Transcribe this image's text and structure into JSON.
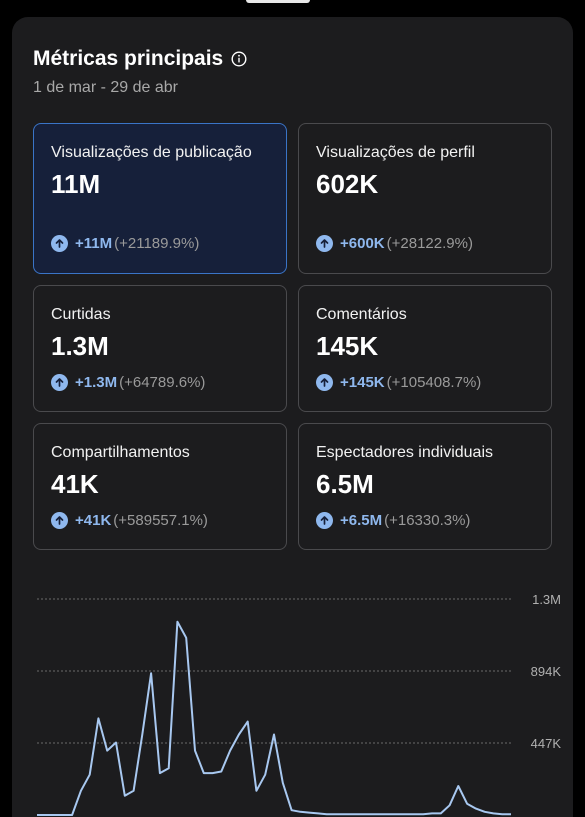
{
  "header": {
    "title": "Métricas principais",
    "date_range": "1 de mar - 29 de abr"
  },
  "metrics": [
    {
      "label": "Visualizações de publicação",
      "value": "11M",
      "delta": "+11M",
      "delta_pct": "(+21189.9%)",
      "selected": true
    },
    {
      "label": "Visualizações de perfil",
      "value": "602K",
      "delta": "+600K",
      "delta_pct": "(+28122.9%)",
      "selected": false
    },
    {
      "label": "Curtidas",
      "value": "1.3M",
      "delta": "+1.3M",
      "delta_pct": "(+64789.6%)",
      "selected": false
    },
    {
      "label": "Comentários",
      "value": "145K",
      "delta": "+145K",
      "delta_pct": "(+105408.7%)",
      "selected": false
    },
    {
      "label": "Compartilhamentos",
      "value": "41K",
      "delta": "+41K",
      "delta_pct": "(+589557.1%)",
      "selected": false
    },
    {
      "label": "Espectadores individuais",
      "value": "6.5M",
      "delta": "+6.5M",
      "delta_pct": "(+16330.3%)",
      "selected": false
    }
  ],
  "colors": {
    "accent": "#8fb8ee",
    "selected_border": "#3a74c7",
    "line": "#a8c8f0"
  },
  "chart_data": {
    "type": "line",
    "y_ticks": [
      "1.3M",
      "894K",
      "447K"
    ],
    "y_tick_values": [
      1341000,
      894000,
      447000
    ],
    "ylim": [
      0,
      1341000
    ],
    "grid": true,
    "series": [
      {
        "values": [
          0,
          0,
          0,
          0,
          0,
          150000,
          250000,
          600000,
          400000,
          450000,
          120000,
          150000,
          500000,
          880000,
          260000,
          290000,
          1200000,
          1100000,
          400000,
          260000,
          260000,
          270000,
          400000,
          500000,
          580000,
          150000,
          250000,
          500000,
          200000,
          30000,
          20000,
          15000,
          10000,
          5000,
          5000,
          5000,
          5000,
          5000,
          5000,
          5000,
          5000,
          5000,
          5000,
          5000,
          5000,
          10000,
          10000,
          60000,
          180000,
          70000,
          40000,
          20000,
          10000,
          5000,
          5000
        ]
      }
    ]
  }
}
